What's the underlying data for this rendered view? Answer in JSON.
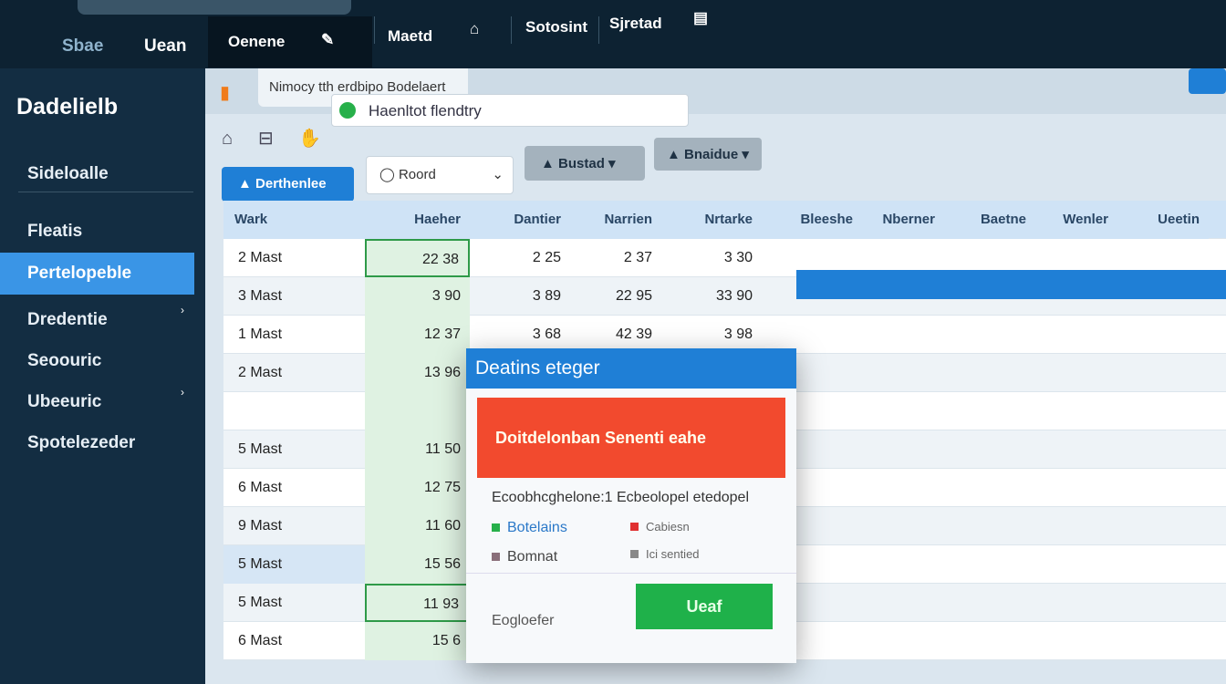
{
  "topbar": {
    "sidetabs": [
      "Sbae",
      "Uean"
    ],
    "nav": [
      "Oenene",
      "Maetd",
      "Sotosint",
      "Sjretad"
    ]
  },
  "sidebar": {
    "brand": "Dadelielb",
    "items": [
      "Sideloalle",
      "Fleatis",
      "Pertelopeble",
      "Dredentie",
      "Seoouric",
      "Ubeeuric",
      "Spotelezeder"
    ],
    "active_index": 2
  },
  "document": {
    "tab_title": "Nimocy tth erdbipo Bodelaert",
    "address": "Haenltot flendtry"
  },
  "toolbar": {
    "primary": "Derthenlee",
    "select": "Roord",
    "button2": "Bustad",
    "button3": "Bnaidue"
  },
  "table": {
    "columns": [
      "Wark",
      "Haeher",
      "Dantier",
      "Narrien",
      "Nrtarke",
      "Bleeshe",
      "Nberner",
      "Baetne",
      "Wenler",
      "Ueetin"
    ],
    "rows": [
      [
        "2 Mast",
        "22 38",
        "2 25",
        "2 37",
        "3 30"
      ],
      [
        "3 Mast",
        "3 90",
        "3 89",
        "22 95",
        "33 90"
      ],
      [
        "1 Mast",
        "12 37",
        "3 68",
        "42 39",
        "3 98"
      ],
      [
        "2 Mast",
        "13 96",
        "",
        "",
        ""
      ],
      [
        "",
        "",
        "",
        "",
        ""
      ],
      [
        "5 Mast",
        "11 50",
        "",
        "",
        ""
      ],
      [
        "6 Mast",
        "12 75",
        "",
        "",
        ""
      ],
      [
        "9 Mast",
        "11 60",
        "",
        "",
        ""
      ],
      [
        "5 Mast",
        "15 56",
        "",
        "",
        ""
      ],
      [
        "5 Mast",
        "11 93",
        "",
        "",
        ""
      ],
      [
        "6 Mast",
        "15 6",
        "",
        "",
        ""
      ]
    ]
  },
  "modal": {
    "title": "Deatins eteger",
    "alert": "Doitdelonban Senenti eahe",
    "description": "Ecoobhcghelone:1 Ecbeolopel etedopel",
    "options": [
      "Botelains",
      "Bomnat",
      "Cabiesn",
      "Ici sentied"
    ],
    "footer_label": "Eogloefer",
    "confirm": "Ueaf"
  },
  "colors": {
    "accent": "#1f7fd6",
    "alert": "#f24a2e",
    "confirm": "#1fb14a",
    "sidebar": "#132d42"
  }
}
